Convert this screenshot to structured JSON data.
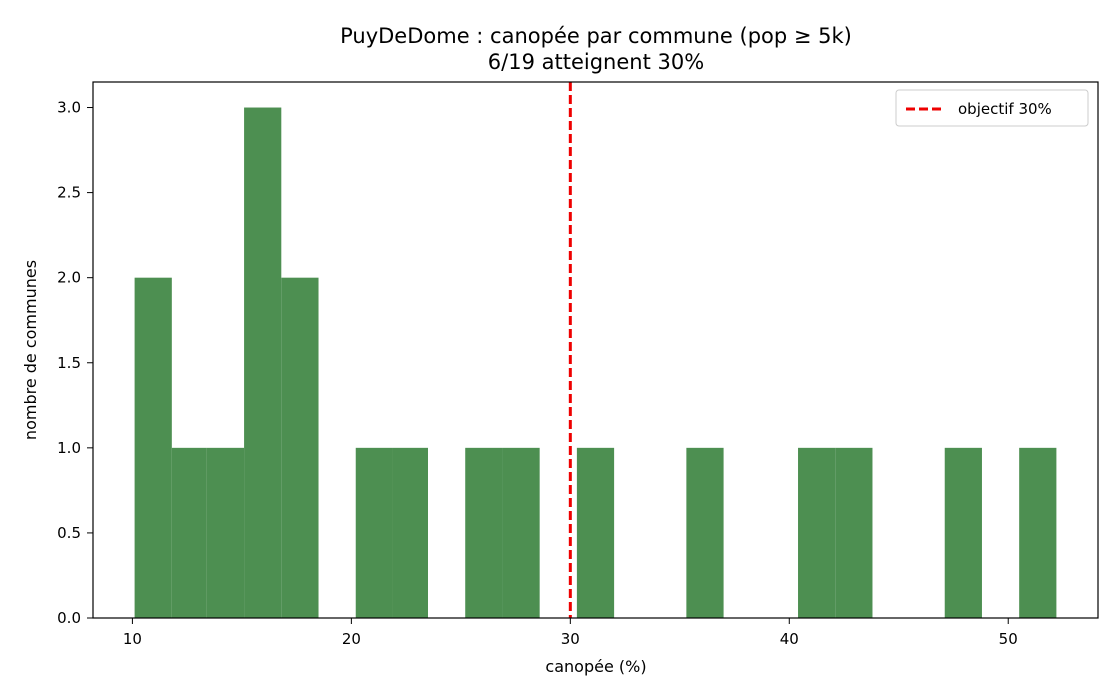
{
  "chart_data": {
    "type": "bar",
    "title": "PuyDeDome : canopée par commune (pop ≥ 5k)",
    "subtitle": "6/19 atteignent 30%",
    "xlabel": "canopée (%)",
    "ylabel": "nombre de communes",
    "xlim": [
      8.2,
      54.1
    ],
    "ylim": [
      0,
      3.15
    ],
    "x_ticks": [
      10,
      20,
      30,
      40,
      50
    ],
    "y_ticks": [
      0.0,
      0.5,
      1.0,
      1.5,
      2.0,
      2.5,
      3.0
    ],
    "y_tick_labels": [
      "0.0",
      "0.5",
      "1.0",
      "1.5",
      "2.0",
      "2.5",
      "3.0"
    ],
    "bar_color": "#4d8f51",
    "bins": [
      {
        "start": 10.1,
        "end": 11.8,
        "count": 2
      },
      {
        "start": 11.8,
        "end": 13.4,
        "count": 1
      },
      {
        "start": 13.4,
        "end": 15.1,
        "count": 1
      },
      {
        "start": 15.1,
        "end": 16.8,
        "count": 3
      },
      {
        "start": 16.8,
        "end": 18.5,
        "count": 2
      },
      {
        "start": 20.2,
        "end": 21.9,
        "count": 1
      },
      {
        "start": 21.9,
        "end": 23.5,
        "count": 1
      },
      {
        "start": 25.2,
        "end": 26.9,
        "count": 1
      },
      {
        "start": 26.9,
        "end": 28.6,
        "count": 1
      },
      {
        "start": 30.3,
        "end": 32.0,
        "count": 1
      },
      {
        "start": 35.3,
        "end": 37.0,
        "count": 1
      },
      {
        "start": 40.4,
        "end": 42.1,
        "count": 1
      },
      {
        "start": 42.1,
        "end": 43.8,
        "count": 1
      },
      {
        "start": 47.1,
        "end": 48.8,
        "count": 1
      },
      {
        "start": 50.5,
        "end": 52.2,
        "count": 1
      }
    ],
    "reference_line": {
      "x": 30,
      "label": "objectif 30%",
      "color": "#ee0000",
      "style": "dashed"
    },
    "legend": {
      "position": "top-right",
      "entries": [
        "objectif 30%"
      ]
    },
    "grid": false
  }
}
